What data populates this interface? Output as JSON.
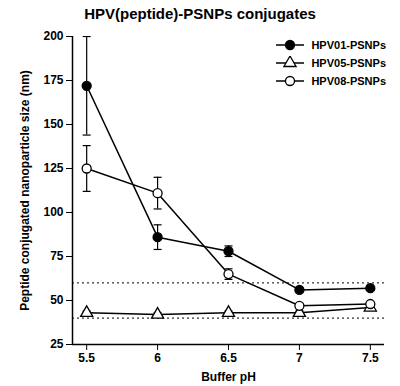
{
  "chart_data": {
    "type": "line",
    "title": "HPV(peptide)-PSNPs conjugates",
    "x_label": "Buffer pH",
    "y_label": "Peptide conjugated nanoparticle size (nm)",
    "x": [
      5.5,
      6,
      6.5,
      7,
      7.5
    ],
    "series": [
      {
        "name": "HPV01-PSNPs",
        "color": "#000000",
        "marker": "circle",
        "values": [
          172,
          86,
          78,
          56,
          57
        ],
        "errors": [
          28,
          7,
          3,
          1,
          1
        ]
      },
      {
        "name": "HPV05-PSNPs",
        "color": "#000000",
        "marker": "triangle-open",
        "values": [
          43,
          42,
          43,
          43,
          46
        ],
        "errors": [
          1,
          1,
          1,
          1,
          1
        ]
      },
      {
        "name": "HPV08-PSNPs",
        "color": "#000000",
        "marker": "circle-open",
        "values": [
          125,
          111,
          65,
          47,
          48
        ],
        "errors": [
          13,
          9,
          3,
          1,
          1
        ]
      }
    ],
    "xlim": [
      5.4,
      7.6
    ],
    "xticks": [
      5.5,
      6,
      6.5,
      7,
      7.5
    ],
    "ylim": [
      25,
      200
    ],
    "yticks": [
      25,
      50,
      75,
      100,
      125,
      150,
      175,
      200
    ],
    "hlines": [
      40,
      60
    ],
    "legend": "upper right"
  }
}
